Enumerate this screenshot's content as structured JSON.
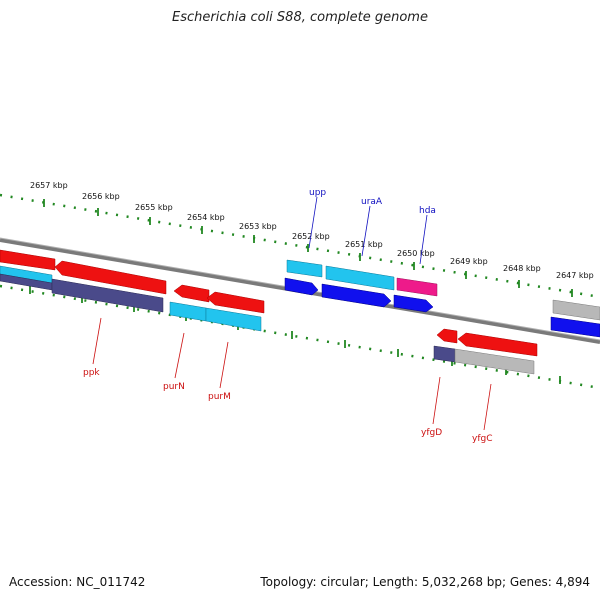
{
  "title": "Escherichia coli S88, complete genome",
  "footer": {
    "accession": "Accession: NC_011742",
    "summary": "Topology: circular; Length: 5,032,268 bp; Genes: 4,894"
  },
  "kbp_labels": [
    "2657 kbp",
    "2656 kbp",
    "2655 kbp",
    "2654 kbp",
    "2653 kbp",
    "2652 kbp",
    "2651 kbp",
    "2650 kbp",
    "2649 kbp",
    "2648 kbp",
    "2647 kbp"
  ],
  "gene_labels": {
    "upp": "upp",
    "uraA": "uraA",
    "hda": "hda",
    "ppk": "ppk",
    "purN": "purN",
    "purM": "purM",
    "yfgD": "yfgD",
    "yfgC": "yfgC"
  },
  "colors": {
    "red": "#ee1111",
    "cyan": "#22c4ee",
    "blue": "#1010ee",
    "slate": "#4a4a8a",
    "magenta": "#ee1a8a",
    "gray": "#b8b8b8",
    "tick_green": "#228822",
    "backbone": "#7a7a7a"
  }
}
